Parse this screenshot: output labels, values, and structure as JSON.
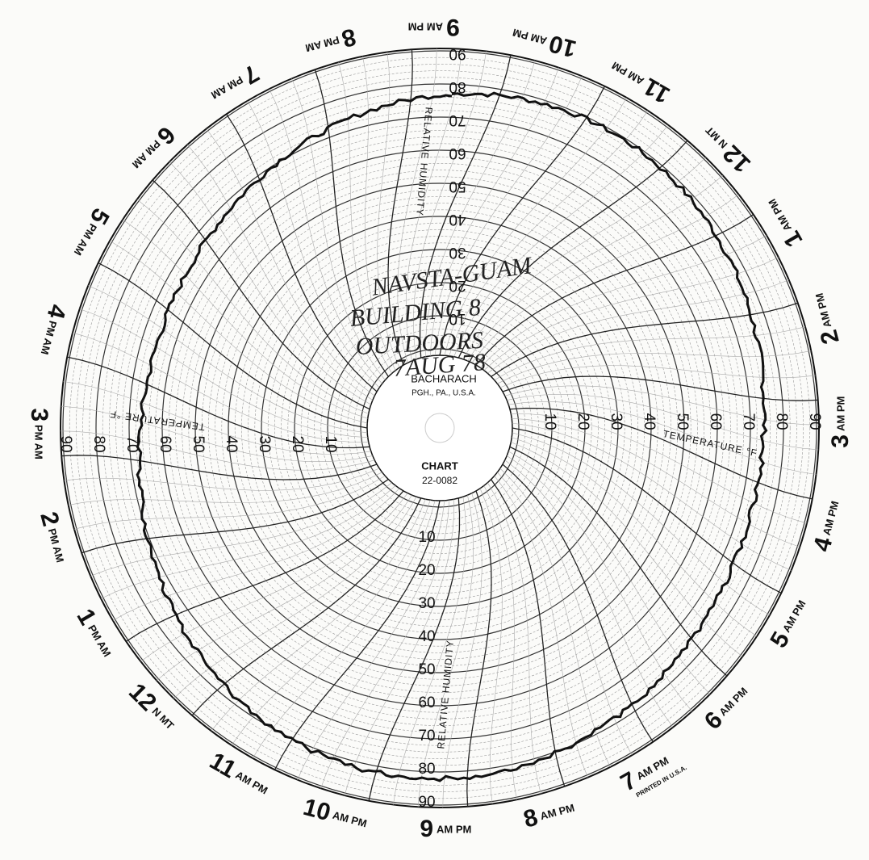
{
  "hour_labels": [
    {
      "hour": 9,
      "period": "AM PM"
    },
    {
      "hour": 10,
      "period": "AM PM"
    },
    {
      "hour": 11,
      "period": "AM PM"
    },
    {
      "hour": 12,
      "period": "N MT"
    },
    {
      "hour": 1,
      "period": "AM PM"
    },
    {
      "hour": 2,
      "period": "AM PM"
    },
    {
      "hour": 3,
      "period": "AM PM"
    },
    {
      "hour": 4,
      "period": "AM PM"
    },
    {
      "hour": 5,
      "period": "AM PM"
    },
    {
      "hour": 6,
      "period": "AM PM"
    },
    {
      "hour": 7,
      "period": "AM PM"
    },
    {
      "hour": 8,
      "period": "AM PM"
    },
    {
      "hour": 9,
      "period": "AM PM"
    },
    {
      "hour": 10,
      "period": "AM PM"
    },
    {
      "hour": 11,
      "period": "AM PM"
    },
    {
      "hour": 12,
      "period": "N MT"
    },
    {
      "hour": 1,
      "period": "PM AM"
    },
    {
      "hour": 2,
      "period": "PM AM"
    },
    {
      "hour": 3,
      "period": "PM AM"
    },
    {
      "hour": 4,
      "period": "PM AM"
    },
    {
      "hour": 5,
      "period": "PM AM"
    },
    {
      "hour": 6,
      "period": "PM AM"
    },
    {
      "hour": 7,
      "period": "PM AM"
    },
    {
      "hour": 8,
      "period": "PM AM"
    }
  ],
  "temperature_scale": [
    10,
    20,
    30,
    40,
    50,
    60,
    70,
    80,
    90
  ],
  "humidity_scale": [
    10,
    20,
    30,
    40,
    50,
    60,
    70,
    80,
    90
  ],
  "axis_labels": {
    "temperature": "TEMPERATURE °F",
    "humidity": "RELATIVE HUMIDITY"
  },
  "center": {
    "maker": "BACHARACH",
    "location": "PGH., PA., U.S.A.",
    "chart_label": "CHART",
    "chart_number": "22-0082"
  },
  "notes": [
    "NAVSTA-GUAM",
    "BUILDING 8",
    "OUTDOORS",
    "7AUG 78"
  ],
  "imprint": "PRINTED IN U.S.A."
}
